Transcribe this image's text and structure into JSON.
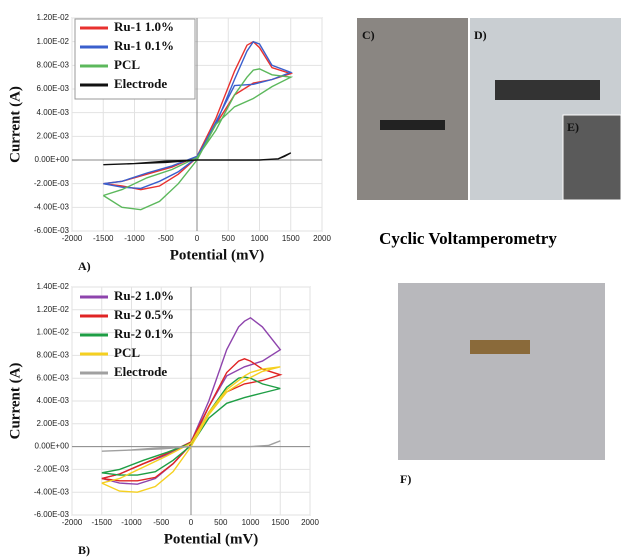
{
  "chart_data": [
    {
      "type": "line",
      "panel_label": "A)",
      "xlabel": "Potential (mV)",
      "ylabel": "Current (A)",
      "grid": true,
      "legend": "upper-left",
      "legend_box": true,
      "xlim": [
        -2000,
        2000
      ],
      "xticks": [
        -2000,
        -1500,
        -1000,
        -500,
        0,
        500,
        1000,
        1500,
        2000
      ],
      "ylim": [
        -0.006,
        0.012
      ],
      "yticks": [
        {
          "value": -0.006,
          "label": "-6.00E-03"
        },
        {
          "value": -0.004,
          "label": "-4.00E-03"
        },
        {
          "value": -0.002,
          "label": "-2.00E-03"
        },
        {
          "value": 0,
          "label": "0.00E+00"
        },
        {
          "value": 0.002,
          "label": "2.00E-03"
        },
        {
          "value": 0.004,
          "label": "4.00E-03"
        },
        {
          "value": 0.006,
          "label": "6.00E-03"
        },
        {
          "value": 0.008,
          "label": "8.00E-03"
        },
        {
          "value": 0.01,
          "label": "1.00E-02"
        },
        {
          "value": 0.012,
          "label": "1.20E-02"
        }
      ],
      "series": [
        {
          "name": "Ru-1 1.0%",
          "color": "#e8312f",
          "x": [
            -1500,
            -1200,
            -800,
            -400,
            0,
            300,
            600,
            800,
            900,
            1000,
            1200,
            1500,
            1200,
            900,
            600,
            300,
            0,
            -300,
            -600,
            -900,
            -1200,
            -1500
          ],
          "values": [
            -0.002,
            -0.0018,
            -0.0012,
            -0.0006,
            0.0003,
            0.0035,
            0.0075,
            0.0097,
            0.01,
            0.0095,
            0.0078,
            0.0073,
            0.0068,
            0.0065,
            0.0055,
            0.003,
            0.0002,
            -0.0012,
            -0.0022,
            -0.0025,
            -0.0022,
            -0.002
          ]
        },
        {
          "name": "Ru-1 0.1%",
          "color": "#3a5fcd",
          "x": [
            -1500,
            -1200,
            -800,
            -400,
            0,
            300,
            600,
            800,
            900,
            1000,
            1200,
            1500,
            1200,
            900,
            600,
            300,
            0,
            -300,
            -600,
            -900,
            -1200,
            -1500
          ],
          "values": [
            -0.002,
            -0.0018,
            -0.0011,
            -0.0005,
            0.0003,
            0.003,
            0.0068,
            0.0092,
            0.01,
            0.0098,
            0.008,
            0.0074,
            0.0068,
            0.0064,
            0.0063,
            0.0032,
            0.0002,
            -0.001,
            -0.0018,
            -0.0024,
            -0.0023,
            -0.002
          ]
        },
        {
          "name": "PCL",
          "color": "#5cb85c",
          "x": [
            -1500,
            -1200,
            -800,
            -400,
            0,
            300,
            600,
            800,
            900,
            1000,
            1200,
            1500,
            1200,
            900,
            600,
            300,
            0,
            -300,
            -600,
            -900,
            -1200,
            -1500
          ],
          "values": [
            -0.003,
            -0.0025,
            -0.0015,
            -0.0008,
            0.0002,
            0.0025,
            0.0055,
            0.007,
            0.0076,
            0.0077,
            0.0072,
            0.007,
            0.0062,
            0.0052,
            0.0045,
            0.003,
            0,
            -0.002,
            -0.0035,
            -0.0042,
            -0.004,
            -0.003
          ]
        },
        {
          "name": "Electrode",
          "color": "#111111",
          "x": [
            -1500,
            -1000,
            -500,
            0,
            500,
            1000,
            1300,
            1400,
            1500,
            1300,
            1000,
            500,
            0,
            -500,
            -1000,
            -1500
          ],
          "values": [
            -0.0004,
            -0.0003,
            -0.0001,
            0,
            0,
            0,
            0.0001,
            0.0003,
            0.0006,
            0.0001,
            0,
            0,
            0,
            -0.0002,
            -0.0003,
            -0.0004
          ]
        }
      ]
    },
    {
      "type": "line",
      "panel_label": "B)",
      "xlabel": "Potential (mV)",
      "ylabel": "Current (A)",
      "grid": true,
      "legend": "upper-left",
      "legend_box": false,
      "xlim": [
        -2000,
        2000
      ],
      "xticks": [
        -2000,
        -1500,
        -1000,
        -500,
        0,
        500,
        1000,
        1500,
        2000
      ],
      "ylim": [
        -0.006,
        0.014
      ],
      "yticks": [
        {
          "value": -0.006,
          "label": "-6.00E-03"
        },
        {
          "value": -0.004,
          "label": "-4.00E-03"
        },
        {
          "value": -0.002,
          "label": "-2.00E-03"
        },
        {
          "value": 0,
          "label": "0.00E+00"
        },
        {
          "value": 0.002,
          "label": "2.00E-03"
        },
        {
          "value": 0.004,
          "label": "4.00E-03"
        },
        {
          "value": 0.006,
          "label": "6.00E-03"
        },
        {
          "value": 0.008,
          "label": "8.00E-03"
        },
        {
          "value": 0.01,
          "label": "1.00E-02"
        },
        {
          "value": 0.012,
          "label": "1.20E-02"
        },
        {
          "value": 0.014,
          "label": "1.40E-02"
        }
      ],
      "series": [
        {
          "name": "Ru-2 1.0%",
          "color": "#8e44ad",
          "x": [
            -1500,
            -1200,
            -800,
            -400,
            0,
            300,
            600,
            800,
            900,
            1000,
            1200,
            1500,
            1200,
            900,
            600,
            300,
            0,
            -300,
            -600,
            -900,
            -1200,
            -1500
          ],
          "values": [
            -0.0028,
            -0.0024,
            -0.0015,
            -0.0007,
            0.0004,
            0.004,
            0.0085,
            0.0105,
            0.011,
            0.0113,
            0.0105,
            0.0085,
            0.0075,
            0.007,
            0.0062,
            0.0035,
            0.0002,
            -0.0015,
            -0.0028,
            -0.0033,
            -0.0032,
            -0.0028
          ]
        },
        {
          "name": "Ru-2 0.5%",
          "color": "#e02424",
          "x": [
            -1500,
            -1200,
            -800,
            -400,
            0,
            300,
            600,
            800,
            900,
            1000,
            1200,
            1500,
            1200,
            900,
            600,
            300,
            0,
            -300,
            -600,
            -900,
            -1200,
            -1500
          ],
          "values": [
            -0.0028,
            -0.0024,
            -0.0015,
            -0.0006,
            0.0004,
            0.0035,
            0.0065,
            0.0075,
            0.0077,
            0.0075,
            0.0068,
            0.0063,
            0.0058,
            0.0055,
            0.0048,
            0.003,
            0.0002,
            -0.0015,
            -0.0027,
            -0.003,
            -0.003,
            -0.0028
          ]
        },
        {
          "name": "Ru-2 0.1%",
          "color": "#1e9e45",
          "x": [
            -1500,
            -1200,
            -800,
            -400,
            0,
            300,
            600,
            800,
            900,
            1000,
            1200,
            1500,
            1200,
            900,
            600,
            300,
            0,
            -300,
            -600,
            -900,
            -1200,
            -1500
          ],
          "values": [
            -0.0023,
            -0.002,
            -0.0012,
            -0.0005,
            0.0003,
            0.003,
            0.0052,
            0.006,
            0.0061,
            0.006,
            0.0055,
            0.0051,
            0.0047,
            0.0043,
            0.0038,
            0.0025,
            0.0001,
            -0.0012,
            -0.0022,
            -0.0025,
            -0.0025,
            -0.0023
          ]
        },
        {
          "name": "PCL",
          "color": "#f5d020",
          "x": [
            -1500,
            -1200,
            -800,
            -400,
            0,
            300,
            600,
            800,
            900,
            1000,
            1200,
            1500,
            1200,
            900,
            600,
            300,
            0,
            -300,
            -600,
            -900,
            -1200,
            -1500
          ],
          "values": [
            -0.0032,
            -0.0028,
            -0.0018,
            -0.0008,
            0.0003,
            0.003,
            0.005,
            0.0058,
            0.0062,
            0.0065,
            0.0068,
            0.007,
            0.0066,
            0.0058,
            0.0048,
            0.0028,
            0,
            -0.0022,
            -0.0035,
            -0.004,
            -0.0039,
            -0.0032
          ]
        },
        {
          "name": "Electrode",
          "color": "#a0a0a0",
          "x": [
            -1500,
            -1000,
            -500,
            0,
            500,
            1000,
            1300,
            1400,
            1500,
            1300,
            1000,
            500,
            0,
            -500,
            -1000,
            -1500
          ],
          "values": [
            -0.0004,
            -0.0003,
            -0.0001,
            0,
            0,
            0,
            0.0001,
            0.0003,
            0.0005,
            0.0001,
            0,
            0,
            0,
            -0.0002,
            -0.0003,
            -0.0004
          ]
        }
      ]
    }
  ],
  "figure": {
    "caption": "Cyclic Voltamperometry",
    "photos": [
      "C)",
      "D)",
      "E)",
      "F)"
    ]
  }
}
